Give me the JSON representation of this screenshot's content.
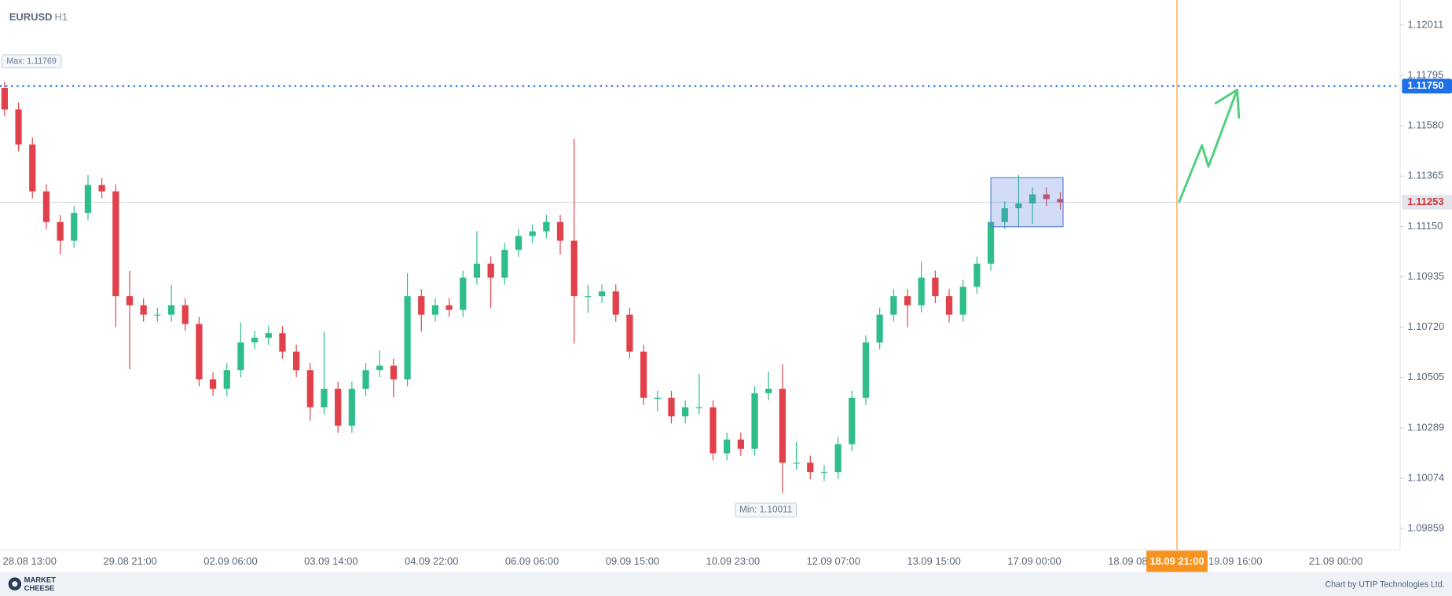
{
  "header": {
    "symbol": "EURUSD",
    "timeframe": "H1"
  },
  "chart_data": {
    "type": "candlestick",
    "open": [
      1.11742,
      1.1165,
      1.115,
      1.113,
      1.11169,
      1.11089,
      1.11208,
      1.11327,
      1.113,
      1.10852,
      1.10813,
      1.10773,
      1.10773,
      1.10813,
      1.10733,
      1.10496,
      1.10456,
      1.10536,
      1.10654,
      1.10674,
      1.10694,
      1.10615,
      1.10536,
      1.10377,
      1.10456,
      1.10298,
      1.10456,
      1.10536,
      1.10555,
      1.10496,
      1.10852,
      1.10773,
      1.10813,
      1.10793,
      1.10931,
      1.10991,
      1.10931,
      1.1105,
      1.11109,
      1.11129,
      1.11169,
      1.11089,
      1.10852,
      1.10852,
      1.10872,
      1.10773,
      1.10615,
      1.10417,
      1.10417,
      1.10338,
      1.10377,
      1.10377,
      1.1018,
      1.10239,
      1.10199,
      1.10437,
      1.10456,
      1.1014,
      1.1014,
      1.101,
      1.101,
      1.10219,
      1.10417,
      1.10654,
      1.10773,
      1.10852,
      1.10813,
      1.10931,
      1.10852,
      1.10773,
      1.10892,
      1.10991,
      1.11169,
      1.11228,
      1.11248,
      1.11287,
      1.11267
    ],
    "high": [
      1.11769,
      1.1168,
      1.1153,
      1.1133,
      1.11199,
      1.11238,
      1.1137,
      1.11357,
      1.1133,
      1.1096,
      1.10843,
      1.10803,
      1.109,
      1.10843,
      1.10763,
      1.10526,
      1.10566,
      1.1074,
      1.10704,
      1.10724,
      1.10724,
      1.10645,
      1.10566,
      1.107,
      1.10486,
      1.10486,
      1.10566,
      1.1062,
      1.10585,
      1.1095,
      1.10882,
      1.10843,
      1.10843,
      1.10961,
      1.1113,
      1.11021,
      1.1108,
      1.11139,
      1.11159,
      1.11199,
      1.11199,
      1.11525,
      1.109,
      1.10902,
      1.10902,
      1.10803,
      1.10645,
      1.10447,
      1.10447,
      1.10407,
      1.1052,
      1.10407,
      1.10269,
      1.10269,
      1.10467,
      1.1053,
      1.1056,
      1.1023,
      1.1017,
      1.1013,
      1.10249,
      1.10447,
      1.10684,
      1.10803,
      1.10882,
      1.10882,
      1.11,
      1.10961,
      1.10882,
      1.10922,
      1.11021,
      1.11199,
      1.11258,
      1.1137,
      1.11317,
      1.11317,
      1.11297
    ],
    "low": [
      1.1162,
      1.1147,
      1.1127,
      1.11139,
      1.1103,
      1.11059,
      1.11178,
      1.1127,
      1.1072,
      1.1054,
      1.10743,
      1.10743,
      1.10743,
      1.10703,
      1.10466,
      1.10426,
      1.10426,
      1.10506,
      1.10624,
      1.10644,
      1.10585,
      1.10506,
      1.1032,
      1.10347,
      1.10268,
      1.10268,
      1.10426,
      1.10506,
      1.1042,
      1.10466,
      1.107,
      1.10743,
      1.10763,
      1.10763,
      1.10901,
      1.108,
      1.10901,
      1.1102,
      1.11079,
      1.11099,
      1.1103,
      1.1065,
      1.1078,
      1.10822,
      1.10743,
      1.10585,
      1.10387,
      1.1036,
      1.10308,
      1.10308,
      1.10347,
      1.1015,
      1.1015,
      1.10169,
      1.10169,
      1.10407,
      1.10011,
      1.1011,
      1.1007,
      1.1006,
      1.1007,
      1.10189,
      1.10387,
      1.10624,
      1.10743,
      1.1072,
      1.10783,
      1.10822,
      1.1074,
      1.10743,
      1.10862,
      1.10961,
      1.11139,
      1.1115,
      1.1116,
      1.11237,
      1.11223
    ],
    "close": [
      1.1165,
      1.115,
      1.113,
      1.11169,
      1.11089,
      1.11208,
      1.11327,
      1.113,
      1.10852,
      1.10813,
      1.10773,
      1.10773,
      1.10813,
      1.10733,
      1.10496,
      1.10456,
      1.10536,
      1.10654,
      1.10674,
      1.10694,
      1.10615,
      1.10536,
      1.10377,
      1.10456,
      1.10298,
      1.10456,
      1.10536,
      1.10555,
      1.10496,
      1.10852,
      1.10773,
      1.10813,
      1.10793,
      1.10931,
      1.10991,
      1.10931,
      1.1105,
      1.11109,
      1.11129,
      1.11169,
      1.11089,
      1.10852,
      1.10852,
      1.10872,
      1.10773,
      1.10615,
      1.10417,
      1.10417,
      1.10338,
      1.10377,
      1.10377,
      1.1018,
      1.10239,
      1.10199,
      1.10437,
      1.10456,
      1.1014,
      1.1014,
      1.101,
      1.101,
      1.10219,
      1.10417,
      1.10654,
      1.10773,
      1.10852,
      1.10813,
      1.10931,
      1.10852,
      1.10773,
      1.10892,
      1.10991,
      1.11169,
      1.11228,
      1.11248,
      1.11287,
      1.11267,
      1.11253
    ],
    "up_color": "#2fbd8a",
    "down_color": "#e2414b",
    "ylim": [
      1.09768,
      1.12118
    ],
    "yticks": [
      1.12011,
      {
        "value": 1.11795,
        "label": "1.11795"
      },
      {
        "value": 1.1158,
        "label": "1.11580"
      },
      1.11365,
      {
        "value": 1.1115,
        "label": "1.11150"
      },
      1.10935,
      {
        "value": 1.1072,
        "label": "1.10720"
      },
      1.10505,
      1.10289,
      1.10074,
      1.09859
    ],
    "x_labels": [
      "28.08 13:00",
      "29.08 21:00",
      "02.09 06:00",
      "03.09 14:00",
      "04.09 22:00",
      "06.09 06:00",
      "09.09 15:00",
      "10.09 23:00",
      "12.09 07:00",
      "13.09 15:00",
      "17.09 00:00",
      "18.09 08:00",
      "19.09 16:00",
      "21.09 00:00"
    ],
    "max_label": "Max: 1.11769",
    "min_label": "Min: 1.10011",
    "level": {
      "value": 1.1175,
      "label": "1.11750",
      "color": "#1e6fe8"
    },
    "current_price": {
      "value": 1.11253,
      "label": "1.11253",
      "color": "#d4323b"
    },
    "time_marker": "18.09 21:00"
  },
  "footer": {
    "logo_top": "MARKET",
    "logo_bottom": "CHEESE",
    "credit": "Chart by UTIP Technologies Ltd."
  }
}
